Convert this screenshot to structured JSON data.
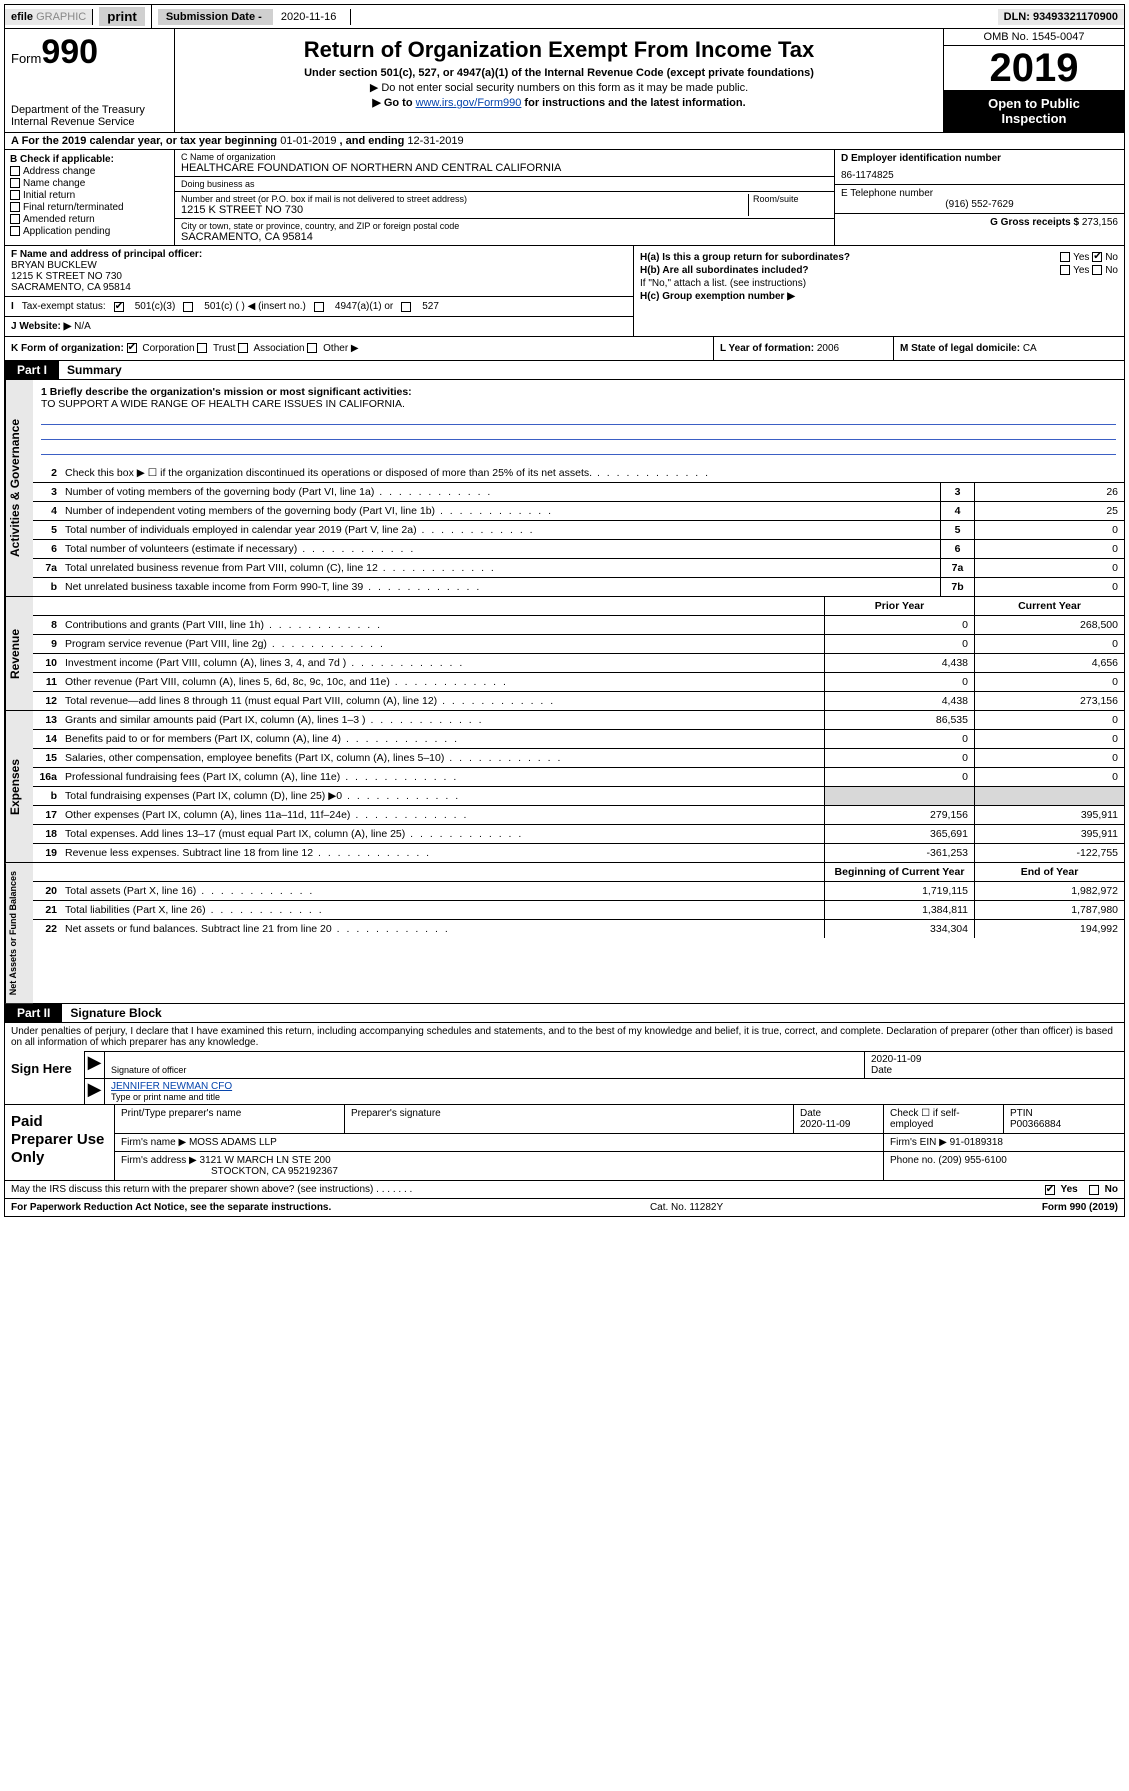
{
  "topbar": {
    "efile": "efile",
    "graphic": "GRAPHIC",
    "print": "print",
    "sub_label": "Submission Date - ",
    "sub_date": "2020-11-16",
    "dln": "DLN: 93493321170900"
  },
  "header": {
    "form_word": "Form",
    "form_num": "990",
    "dept": "Department of the Treasury",
    "irs": "Internal Revenue Service",
    "title": "Return of Organization Exempt From Income Tax",
    "sub1": "Under section 501(c), 527, or 4947(a)(1) of the Internal Revenue Code (except private foundations)",
    "sub2": "▶ Do not enter social security numbers on this form as it may be made public.",
    "sub3_pre": "▶ Go to ",
    "sub3_link": "www.irs.gov/Form990",
    "sub3_post": " for instructions and the latest information.",
    "omb": "OMB No. 1545-0047",
    "year": "2019",
    "open1": "Open to Public",
    "open2": "Inspection"
  },
  "row_a": {
    "label": "A For the 2019 calendar year, or tax year beginning ",
    "begin": "01-01-2019",
    "mid": " , and ending ",
    "end": "12-31-2019"
  },
  "col_b": {
    "title": "B Check if applicable:",
    "items": [
      "Address change",
      "Name change",
      "Initial return",
      "Final return/terminated",
      "Amended return",
      "Application pending"
    ]
  },
  "col_c": {
    "name_label": "C Name of organization",
    "name": "HEALTHCARE FOUNDATION OF NORTHERN AND CENTRAL CALIFORNIA",
    "dba_label": "Doing business as",
    "dba": "",
    "addr_label": "Number and street (or P.O. box if mail is not delivered to street address)",
    "room_label": "Room/suite",
    "addr": "1215 K STREET NO 730",
    "city_label": "City or town, state or province, country, and ZIP or foreign postal code",
    "city": "SACRAMENTO, CA  95814"
  },
  "col_d": {
    "label": "D Employer identification number",
    "val": "86-1174825"
  },
  "col_e": {
    "label": "E Telephone number",
    "val": "(916) 552-7629"
  },
  "col_g": {
    "label": "G Gross receipts $",
    "val": "273,156"
  },
  "col_f": {
    "label": "F Name and address of principal officer:",
    "name": "BRYAN BUCKLEW",
    "addr1": "1215 K STREET NO 730",
    "addr2": "SACRAMENTO, CA  95814"
  },
  "col_h": {
    "a_label": "H(a)  Is this a group return for subordinates?",
    "b_label": "H(b)  Are all subordinates included?",
    "b_note": "If \"No,\" attach a list. (see instructions)",
    "c_label": "H(c)  Group exemption number ▶",
    "yes": "Yes",
    "no": "No"
  },
  "row_i": {
    "label": "Tax-exempt status:",
    "o1": "501(c)(3)",
    "o2": "501(c) (  ) ◀ (insert no.)",
    "o3": "4947(a)(1) or",
    "o4": "527"
  },
  "row_j": {
    "label": "Website: ▶",
    "val": "N/A"
  },
  "row_k": {
    "label": "K Form of organization:",
    "o1": "Corporation",
    "o2": "Trust",
    "o3": "Association",
    "o4": "Other ▶"
  },
  "row_l": {
    "label": "L Year of formation:",
    "val": "2006"
  },
  "row_m": {
    "label": "M State of legal domicile:",
    "val": "CA"
  },
  "part1": {
    "tag": "Part I",
    "title": "Summary"
  },
  "mission": {
    "q": "1  Briefly describe the organization's mission or most significant activities:",
    "text": "TO SUPPORT A WIDE RANGE OF HEALTH CARE ISSUES IN CALIFORNIA."
  },
  "lines_gov": [
    {
      "n": "2",
      "d": "Check this box ▶ ☐  if the organization discontinued its operations or disposed of more than 25% of its net assets.",
      "box": "",
      "v": ""
    },
    {
      "n": "3",
      "d": "Number of voting members of the governing body (Part VI, line 1a)",
      "box": "3",
      "v": "26"
    },
    {
      "n": "4",
      "d": "Number of independent voting members of the governing body (Part VI, line 1b)",
      "box": "4",
      "v": "25"
    },
    {
      "n": "5",
      "d": "Total number of individuals employed in calendar year 2019 (Part V, line 2a)",
      "box": "5",
      "v": "0"
    },
    {
      "n": "6",
      "d": "Total number of volunteers (estimate if necessary)",
      "box": "6",
      "v": "0"
    },
    {
      "n": "7a",
      "d": "Total unrelated business revenue from Part VIII, column (C), line 12",
      "box": "7a",
      "v": "0"
    },
    {
      "n": "b",
      "d": "Net unrelated business taxable income from Form 990-T, line 39",
      "box": "7b",
      "v": "0"
    }
  ],
  "col_headers": {
    "prior": "Prior Year",
    "current": "Current Year",
    "beg": "Beginning of Current Year",
    "end": "End of Year"
  },
  "lines_rev": [
    {
      "n": "8",
      "d": "Contributions and grants (Part VIII, line 1h)",
      "p": "0",
      "c": "268,500"
    },
    {
      "n": "9",
      "d": "Program service revenue (Part VIII, line 2g)",
      "p": "0",
      "c": "0"
    },
    {
      "n": "10",
      "d": "Investment income (Part VIII, column (A), lines 3, 4, and 7d )",
      "p": "4,438",
      "c": "4,656"
    },
    {
      "n": "11",
      "d": "Other revenue (Part VIII, column (A), lines 5, 6d, 8c, 9c, 10c, and 11e)",
      "p": "0",
      "c": "0"
    },
    {
      "n": "12",
      "d": "Total revenue—add lines 8 through 11 (must equal Part VIII, column (A), line 12)",
      "p": "4,438",
      "c": "273,156"
    }
  ],
  "lines_exp": [
    {
      "n": "13",
      "d": "Grants and similar amounts paid (Part IX, column (A), lines 1–3 )",
      "p": "86,535",
      "c": "0"
    },
    {
      "n": "14",
      "d": "Benefits paid to or for members (Part IX, column (A), line 4)",
      "p": "0",
      "c": "0"
    },
    {
      "n": "15",
      "d": "Salaries, other compensation, employee benefits (Part IX, column (A), lines 5–10)",
      "p": "0",
      "c": "0"
    },
    {
      "n": "16a",
      "d": "Professional fundraising fees (Part IX, column (A), line 11e)",
      "p": "0",
      "c": "0"
    },
    {
      "n": "b",
      "d": "Total fundraising expenses (Part IX, column (D), line 25) ▶0",
      "p": "",
      "c": "",
      "shade": true
    },
    {
      "n": "17",
      "d": "Other expenses (Part IX, column (A), lines 11a–11d, 11f–24e)",
      "p": "279,156",
      "c": "395,911"
    },
    {
      "n": "18",
      "d": "Total expenses. Add lines 13–17 (must equal Part IX, column (A), line 25)",
      "p": "365,691",
      "c": "395,911"
    },
    {
      "n": "19",
      "d": "Revenue less expenses. Subtract line 18 from line 12",
      "p": "-361,253",
      "c": "-122,755"
    }
  ],
  "lines_net": [
    {
      "n": "20",
      "d": "Total assets (Part X, line 16)",
      "p": "1,719,115",
      "c": "1,982,972"
    },
    {
      "n": "21",
      "d": "Total liabilities (Part X, line 26)",
      "p": "1,384,811",
      "c": "1,787,980"
    },
    {
      "n": "22",
      "d": "Net assets or fund balances. Subtract line 21 from line 20",
      "p": "334,304",
      "c": "194,992"
    }
  ],
  "side_labels": {
    "gov": "Activities & Governance",
    "rev": "Revenue",
    "exp": "Expenses",
    "net": "Net Assets or Fund Balances"
  },
  "part2": {
    "tag": "Part II",
    "title": "Signature Block"
  },
  "sig": {
    "decl": "Under penalties of perjury, I declare that I have examined this return, including accompanying schedules and statements, and to the best of my knowledge and belief, it is true, correct, and complete. Declaration of preparer (other than officer) is based on all information of which preparer has any knowledge.",
    "here": "Sign Here",
    "sig_label": "Signature of officer",
    "date_label": "Date",
    "date": "2020-11-09",
    "name": "JENNIFER NEWMAN  CFO",
    "name_label": "Type or print name and title"
  },
  "prep": {
    "title": "Paid Preparer Use Only",
    "h1": "Print/Type preparer's name",
    "h2": "Preparer's signature",
    "h3": "Date",
    "h3v": "2020-11-09",
    "h4": "Check ☐ if self-employed",
    "h5": "PTIN",
    "h5v": "P00366884",
    "firm_l": "Firm's name    ▶",
    "firm": "MOSS ADAMS LLP",
    "ein_l": "Firm's EIN ▶",
    "ein": "91-0189318",
    "addr_l": "Firm's address ▶",
    "addr1": "3121 W MARCH LN STE 200",
    "addr2": "STOCKTON, CA  952192367",
    "ph_l": "Phone no.",
    "ph": "(209) 955-6100"
  },
  "discuss": {
    "q": "May the IRS discuss this return with the preparer shown above? (see instructions)",
    "yes": "Yes",
    "no": "No"
  },
  "foot": {
    "l": "For Paperwork Reduction Act Notice, see the separate instructions.",
    "m": "Cat. No. 11282Y",
    "r": "Form 990 (2019)"
  }
}
